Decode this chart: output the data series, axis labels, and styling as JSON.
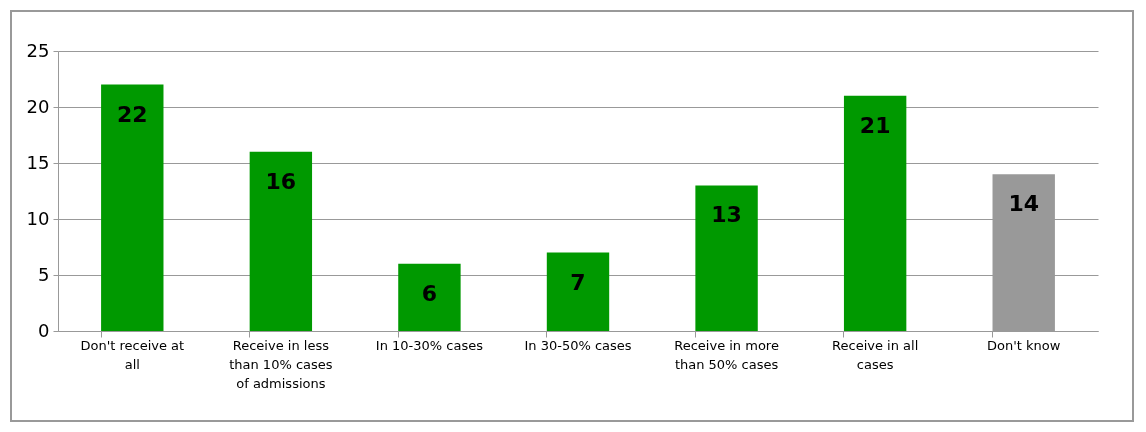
{
  "chart_data": {
    "type": "bar",
    "categories": [
      "Don't receive at all",
      "Receive in less than 10% cases of admissions",
      "In 10-30% cases",
      "In 30-50% cases",
      "Receive in more than 50% cases",
      "Receive in all cases",
      "Don't know"
    ],
    "values": [
      22,
      16,
      6,
      7,
      13,
      21,
      14
    ],
    "colors": [
      "#009900",
      "#009900",
      "#009900",
      "#009900",
      "#009900",
      "#009900",
      "#999999"
    ],
    "ylim": [
      0,
      25
    ],
    "yticks": [
      0,
      5,
      10,
      15,
      20,
      25
    ],
    "grid": "y",
    "data_labels": true
  }
}
